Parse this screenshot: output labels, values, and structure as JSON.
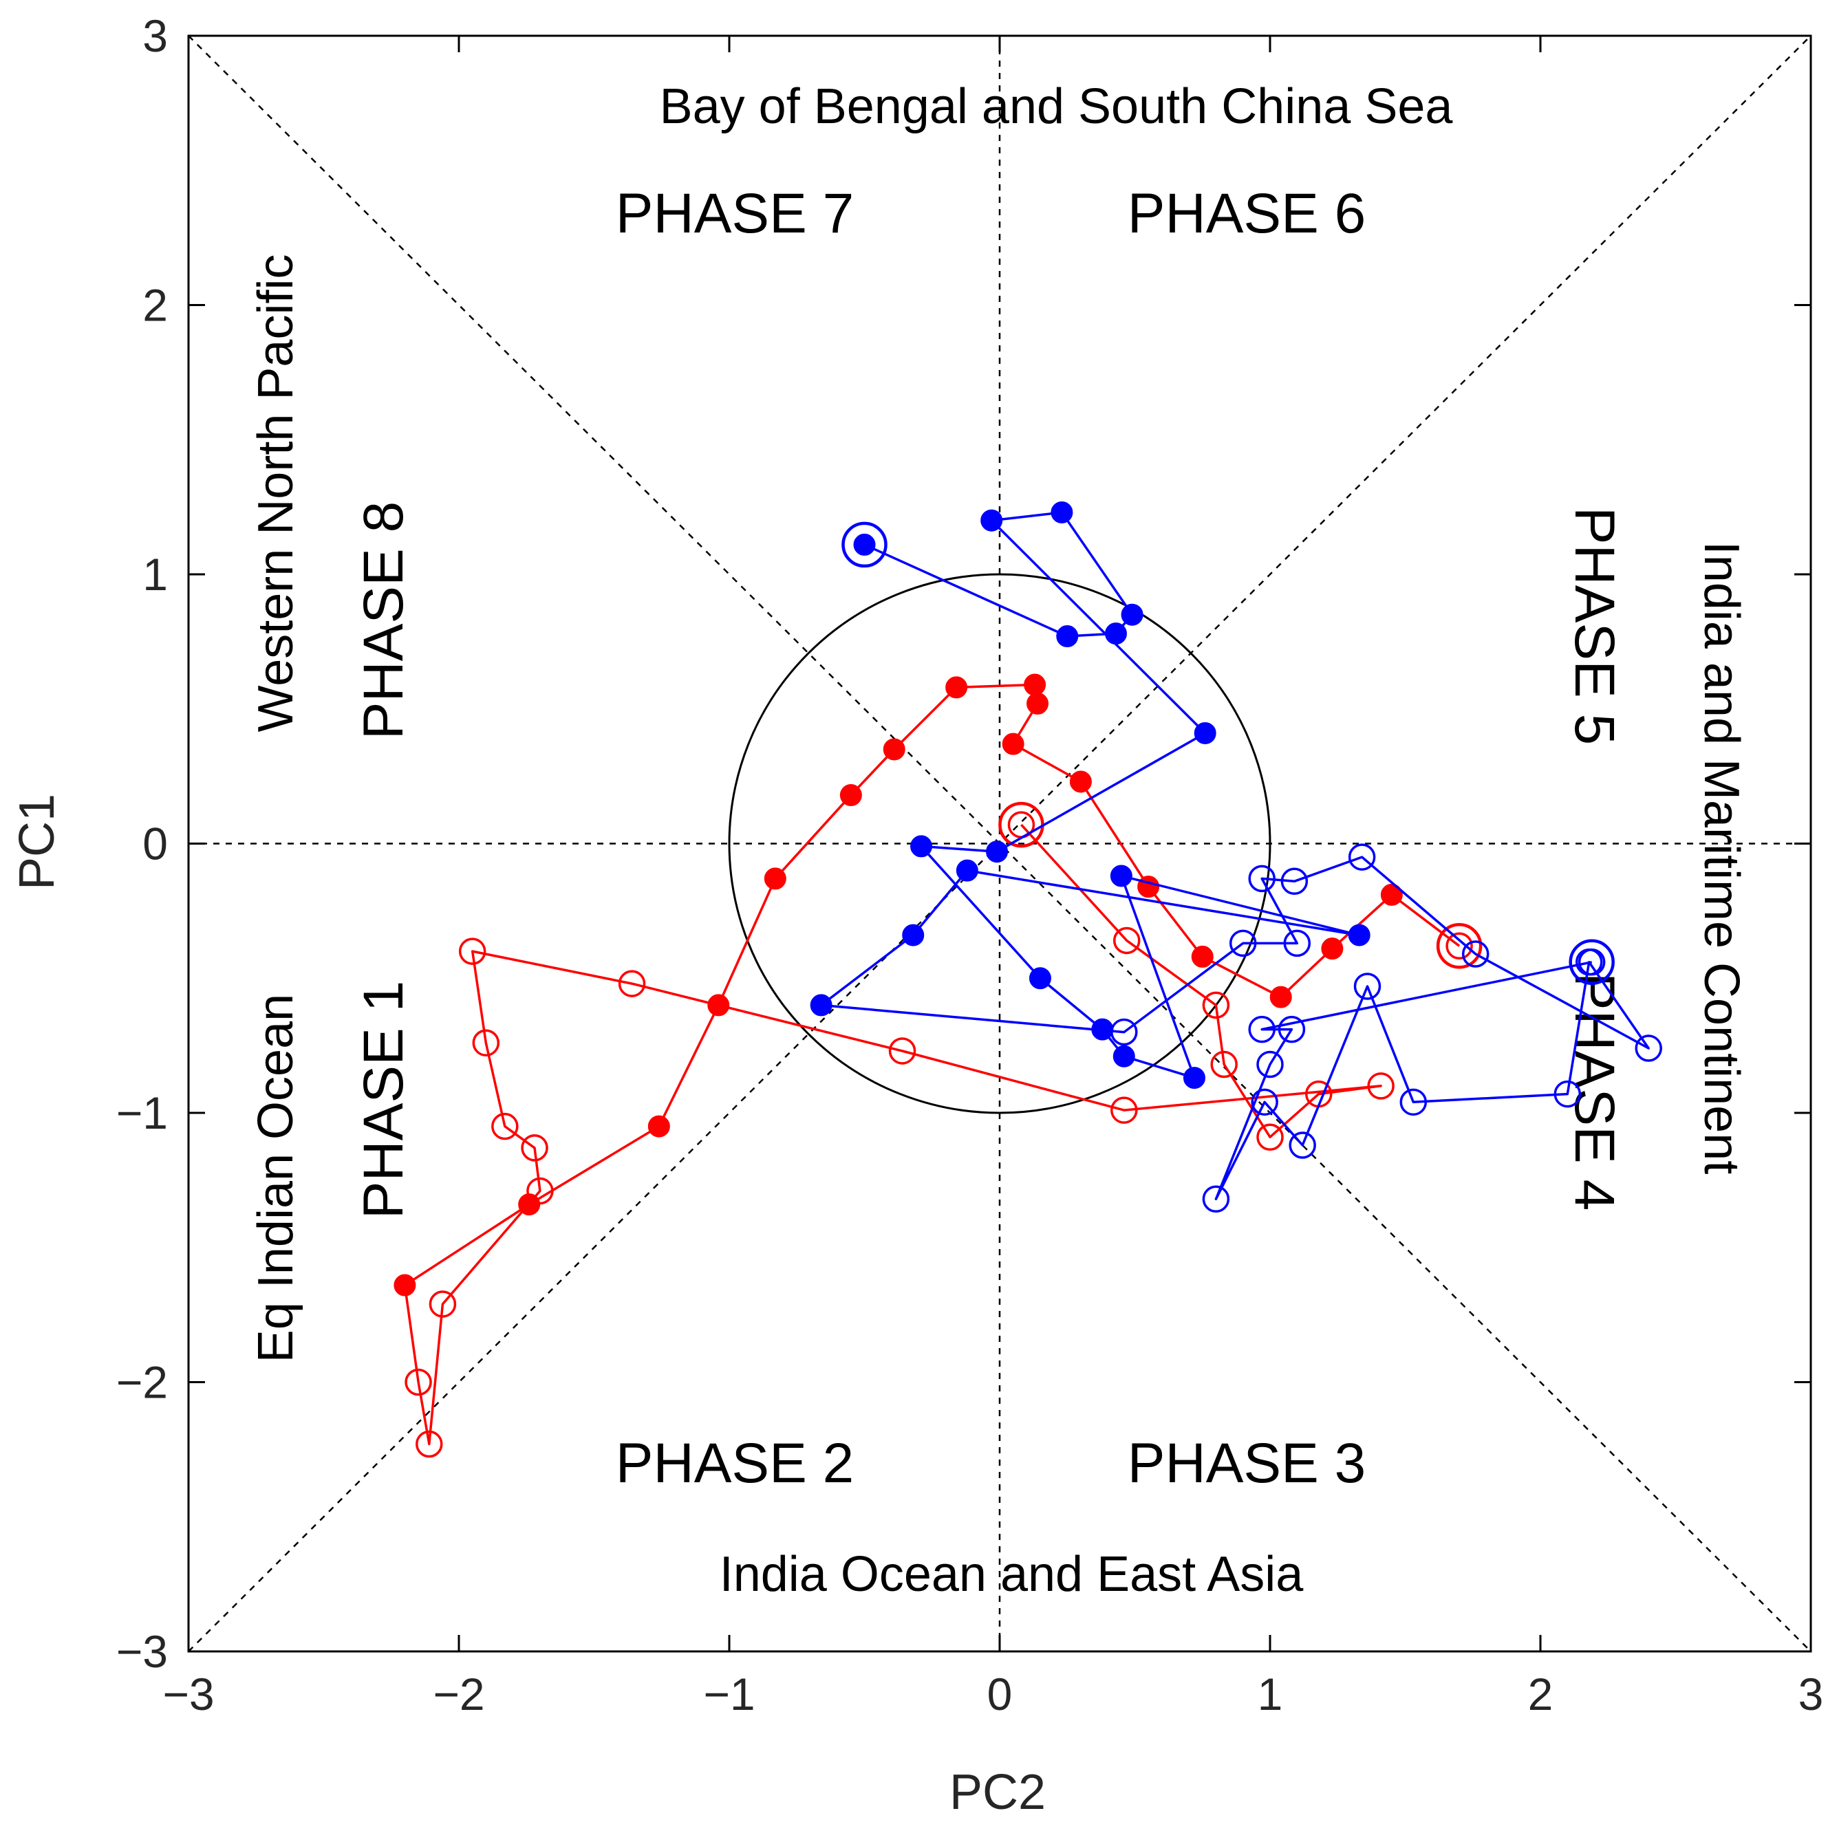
{
  "chart_data": {
    "type": "scatter",
    "title": "",
    "xlabel": "PC2",
    "ylabel": "PC1",
    "xlim": [
      -3,
      3
    ],
    "ylim": [
      -3,
      3
    ],
    "xticks": [
      -3,
      -2,
      -1,
      0,
      1,
      2,
      3
    ],
    "yticks": [
      -3,
      -2,
      -1,
      0,
      1,
      2,
      3
    ],
    "tick_labels": [
      "−3",
      "−2",
      "−1",
      "0",
      "1",
      "2",
      "3"
    ],
    "reference_circle_radius": 1,
    "regions": {
      "top": "Bay of Bengal and South China Sea",
      "bottom": "India Ocean and East Asia",
      "left_upper": "Western North Pacific",
      "left_lower": "Eq Indian Ocean",
      "right": "India and Maritime Continent"
    },
    "phases": {
      "p1": "PHASE 1",
      "p2": "PHASE 2",
      "p3": "PHASE 3",
      "p4": "PHASE 4",
      "p5": "PHASE 5",
      "p6": "PHASE 6",
      "p7": "PHASE 7",
      "p8": "PHASE 8"
    },
    "series": [
      {
        "name": "red trajectory",
        "color": "#ff0000",
        "points": [
          {
            "x": 1.7,
            "y": -0.38,
            "marker": "open",
            "start": true
          },
          {
            "x": 1.45,
            "y": -0.19,
            "marker": "filled"
          },
          {
            "x": 1.23,
            "y": -0.39,
            "marker": "filled"
          },
          {
            "x": 1.04,
            "y": -0.57,
            "marker": "filled"
          },
          {
            "x": 0.75,
            "y": -0.42,
            "marker": "filled"
          },
          {
            "x": 0.55,
            "y": -0.16,
            "marker": "filled"
          },
          {
            "x": 0.3,
            "y": 0.23,
            "marker": "filled"
          },
          {
            "x": 0.05,
            "y": 0.37,
            "marker": "filled"
          },
          {
            "x": 0.14,
            "y": 0.52,
            "marker": "filled"
          },
          {
            "x": 0.13,
            "y": 0.59,
            "marker": "filled"
          },
          {
            "x": -0.16,
            "y": 0.58,
            "marker": "filled"
          },
          {
            "x": -0.39,
            "y": 0.35,
            "marker": "filled"
          },
          {
            "x": -0.55,
            "y": 0.18,
            "marker": "filled"
          },
          {
            "x": -0.83,
            "y": -0.13,
            "marker": "filled"
          },
          {
            "x": -1.04,
            "y": -0.6,
            "marker": "filled"
          },
          {
            "x": -1.26,
            "y": -1.05,
            "marker": "filled"
          },
          {
            "x": -1.74,
            "y": -1.34,
            "marker": "filled"
          },
          {
            "x": -2.2,
            "y": -1.64,
            "marker": "filled"
          },
          {
            "x": -2.15,
            "y": -2.0,
            "marker": "open"
          },
          {
            "x": -2.11,
            "y": -2.23,
            "marker": "open"
          },
          {
            "x": -2.06,
            "y": -1.71,
            "marker": "open"
          },
          {
            "x": -1.7,
            "y": -1.29,
            "marker": "open"
          },
          {
            "x": -1.72,
            "y": -1.13,
            "marker": "open"
          },
          {
            "x": -1.83,
            "y": -1.05,
            "marker": "open"
          },
          {
            "x": -1.9,
            "y": -0.74,
            "marker": "open"
          },
          {
            "x": -1.95,
            "y": -0.4,
            "marker": "open"
          },
          {
            "x": -1.36,
            "y": -0.52,
            "marker": "open"
          },
          {
            "x": -0.36,
            "y": -0.77,
            "marker": "open"
          },
          {
            "x": 0.46,
            "y": -0.99,
            "marker": "open"
          },
          {
            "x": 1.41,
            "y": -0.9,
            "marker": "open"
          },
          {
            "x": 1.18,
            "y": -0.93,
            "marker": "open"
          },
          {
            "x": 1.0,
            "y": -1.09,
            "marker": "open"
          },
          {
            "x": 0.83,
            "y": -0.82,
            "marker": "open"
          },
          {
            "x": 0.8,
            "y": -0.6,
            "marker": "open"
          },
          {
            "x": 0.47,
            "y": -0.36,
            "marker": "open"
          },
          {
            "x": 0.08,
            "y": 0.07,
            "marker": "open",
            "end": true
          }
        ]
      },
      {
        "name": "blue trajectory",
        "color": "#0000ff",
        "points": [
          {
            "x": -0.5,
            "y": 1.11,
            "marker": "filled",
            "start": true
          },
          {
            "x": 0.25,
            "y": 0.77,
            "marker": "filled"
          },
          {
            "x": 0.43,
            "y": 0.78,
            "marker": "filled"
          },
          {
            "x": 0.49,
            "y": 0.85,
            "marker": "filled"
          },
          {
            "x": 0.23,
            "y": 1.23,
            "marker": "filled"
          },
          {
            "x": -0.03,
            "y": 1.2,
            "marker": "filled"
          },
          {
            "x": 0.76,
            "y": 0.41,
            "marker": "filled"
          },
          {
            "x": -0.01,
            "y": -0.03,
            "marker": "filled"
          },
          {
            "x": -0.29,
            "y": -0.01,
            "marker": "filled"
          },
          {
            "x": 0.15,
            "y": -0.5,
            "marker": "filled"
          },
          {
            "x": 0.38,
            "y": -0.69,
            "marker": "filled"
          },
          {
            "x": 0.46,
            "y": -0.79,
            "marker": "filled"
          },
          {
            "x": 0.72,
            "y": -0.87,
            "marker": "filled"
          },
          {
            "x": 0.45,
            "y": -0.12,
            "marker": "filled"
          },
          {
            "x": 1.33,
            "y": -0.34,
            "marker": "filled"
          },
          {
            "x": -0.12,
            "y": -0.1,
            "marker": "filled"
          },
          {
            "x": -0.32,
            "y": -0.34,
            "marker": "filled"
          },
          {
            "x": -0.66,
            "y": -0.6,
            "marker": "filled"
          },
          {
            "x": 0.46,
            "y": -0.7,
            "marker": "open"
          },
          {
            "x": 0.9,
            "y": -0.37,
            "marker": "open"
          },
          {
            "x": 1.1,
            "y": -0.37,
            "marker": "open"
          },
          {
            "x": 0.97,
            "y": -0.13,
            "marker": "open"
          },
          {
            "x": 1.09,
            "y": -0.14,
            "marker": "open"
          },
          {
            "x": 1.34,
            "y": -0.05,
            "marker": "open"
          },
          {
            "x": 1.76,
            "y": -0.41,
            "marker": "open"
          },
          {
            "x": 2.4,
            "y": -0.76,
            "marker": "open"
          },
          {
            "x": 2.18,
            "y": -0.44,
            "marker": "open"
          },
          {
            "x": 2.1,
            "y": -0.93,
            "marker": "open"
          },
          {
            "x": 1.53,
            "y": -0.96,
            "marker": "open"
          },
          {
            "x": 1.36,
            "y": -0.53,
            "marker": "open"
          },
          {
            "x": 1.12,
            "y": -1.12,
            "marker": "open"
          },
          {
            "x": 0.98,
            "y": -0.96,
            "marker": "open"
          },
          {
            "x": 0.8,
            "y": -1.32,
            "marker": "open"
          },
          {
            "x": 1.0,
            "y": -0.82,
            "marker": "open"
          },
          {
            "x": 1.08,
            "y": -0.69,
            "marker": "open"
          },
          {
            "x": 0.97,
            "y": -0.69,
            "marker": "open"
          },
          {
            "x": 2.19,
            "y": -0.44,
            "marker": "open",
            "end": true
          }
        ]
      }
    ]
  }
}
